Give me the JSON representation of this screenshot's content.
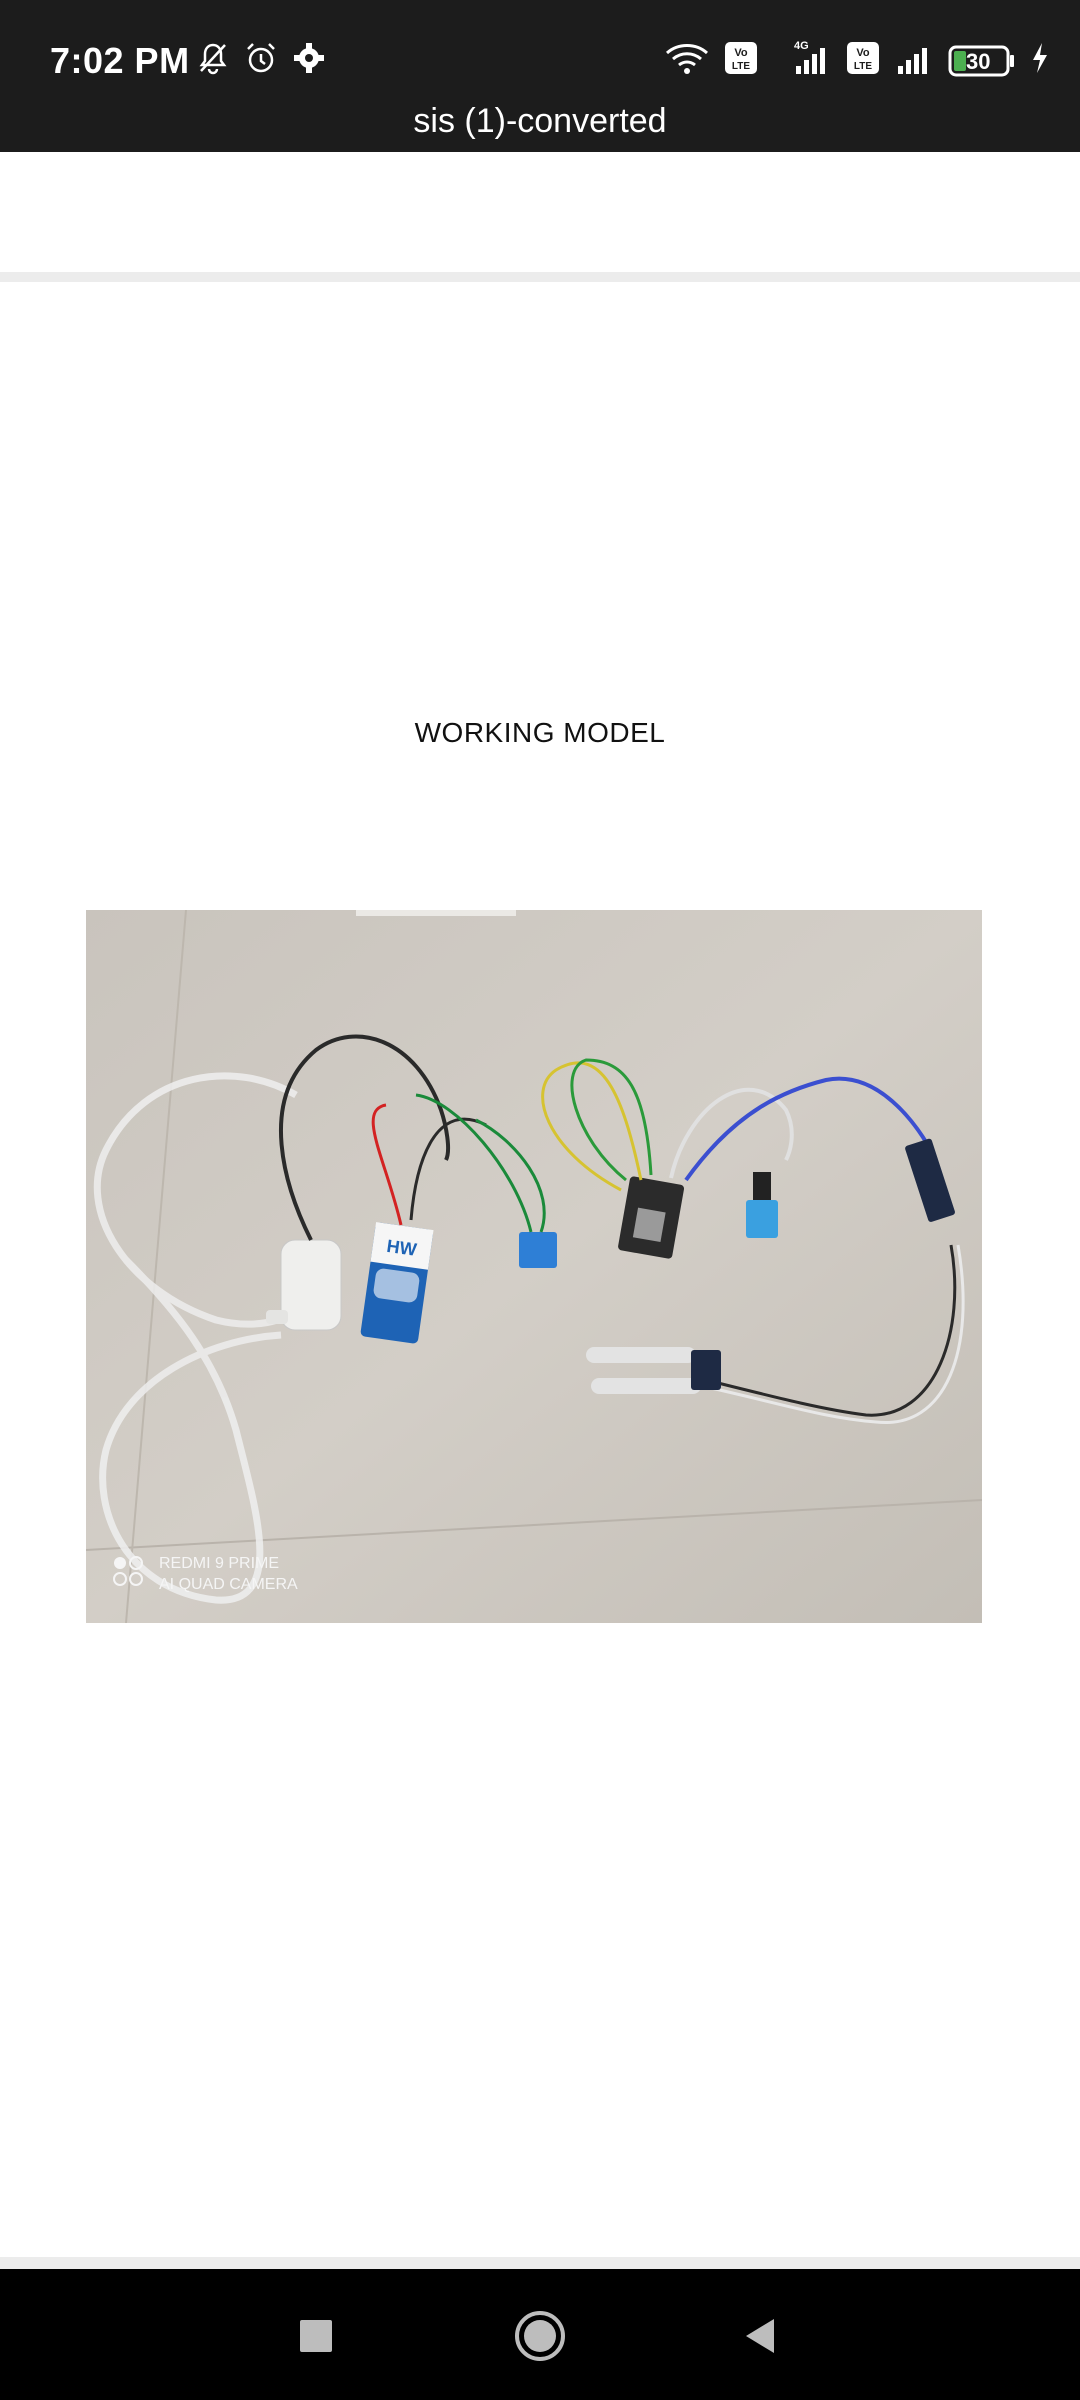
{
  "status_bar": {
    "time": "7:02 PM",
    "network_label": "4G",
    "volte_label": "Vo LTE",
    "battery_level": "30"
  },
  "header": {
    "title": "sis (1)-converted"
  },
  "page": {
    "heading": "WORKING MODEL",
    "photo": {
      "watermark_line1": "REDMI 9 PRIME",
      "watermark_line2": "AI QUAD CAMERA",
      "battery_label": "HW"
    }
  },
  "nav": {
    "items": [
      "recents-button",
      "home-button",
      "back-button"
    ]
  },
  "icons": {
    "status": [
      "mute-bell-icon",
      "alarm-icon",
      "settings-gear-icon",
      "wifi-icon",
      "signal-icon",
      "battery-icon",
      "charging-icon"
    ]
  }
}
